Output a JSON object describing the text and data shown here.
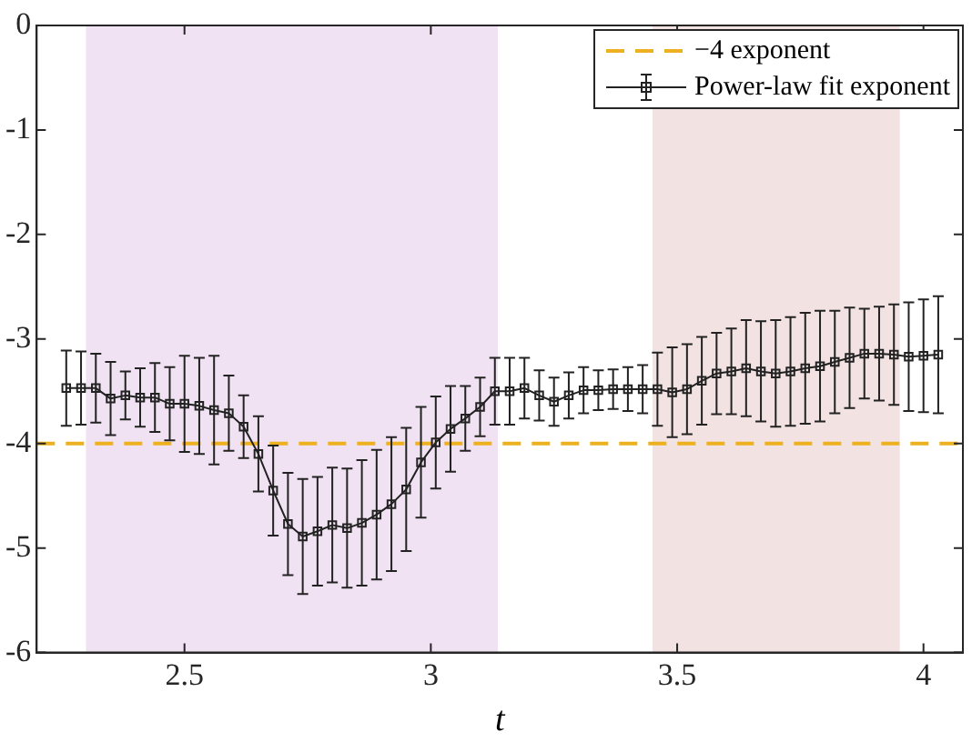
{
  "chart_data": {
    "type": "line",
    "xlabel": "t",
    "xlim": [
      2.2,
      4.08
    ],
    "xticks": [
      2.5,
      3,
      3.5,
      4
    ],
    "ylim": [
      -6,
      0
    ],
    "yticks": [
      0,
      -1,
      -2,
      -3,
      -4,
      -5,
      -6
    ],
    "grid": false,
    "legend": "top right",
    "marker": "square",
    "line_style": "solid",
    "ref_lines": [
      {
        "axis": "y",
        "value": -4,
        "label": "−4 exponent",
        "color": "#edb120",
        "line_style": "dashed"
      }
    ],
    "bands": [
      {
        "axis": "x",
        "from": 2.3,
        "to": 3.136,
        "color": "#f0e2f2"
      },
      {
        "axis": "x",
        "from": 3.45,
        "to": 3.952,
        "color": "#f2e2e2"
      }
    ],
    "series": [
      {
        "name": "Power-law fit exponent",
        "color": "#222222",
        "x": [
          2.26,
          2.29,
          2.32,
          2.35,
          2.38,
          2.41,
          2.44,
          2.47,
          2.5,
          2.53,
          2.56,
          2.59,
          2.62,
          2.65,
          2.68,
          2.71,
          2.74,
          2.77,
          2.8,
          2.83,
          2.86,
          2.89,
          2.92,
          2.95,
          2.98,
          3.01,
          3.04,
          3.07,
          3.1,
          3.13,
          3.16,
          3.19,
          3.22,
          3.25,
          3.28,
          3.31,
          3.34,
          3.37,
          3.4,
          3.43,
          3.46,
          3.49,
          3.52,
          3.55,
          3.58,
          3.61,
          3.64,
          3.67,
          3.7,
          3.73,
          3.76,
          3.79,
          3.82,
          3.85,
          3.88,
          3.91,
          3.94,
          3.97,
          4.0,
          4.03
        ],
        "values": [
          -3.47,
          -3.47,
          -3.47,
          -3.57,
          -3.54,
          -3.56,
          -3.56,
          -3.62,
          -3.62,
          -3.64,
          -3.68,
          -3.71,
          -3.84,
          -4.1,
          -4.45,
          -4.77,
          -4.89,
          -4.84,
          -4.78,
          -4.81,
          -4.76,
          -4.68,
          -4.58,
          -4.44,
          -4.18,
          -3.99,
          -3.86,
          -3.76,
          -3.65,
          -3.5,
          -3.5,
          -3.47,
          -3.54,
          -3.6,
          -3.54,
          -3.49,
          -3.49,
          -3.48,
          -3.48,
          -3.48,
          -3.48,
          -3.51,
          -3.48,
          -3.4,
          -3.33,
          -3.31,
          -3.28,
          -3.31,
          -3.33,
          -3.31,
          -3.28,
          -3.26,
          -3.22,
          -3.18,
          -3.14,
          -3.14,
          -3.15,
          -3.17,
          -3.16,
          -3.15
        ],
        "errors": [
          0.36,
          0.35,
          0.33,
          0.35,
          0.23,
          0.28,
          0.33,
          0.35,
          0.46,
          0.46,
          0.52,
          0.36,
          0.3,
          0.36,
          0.43,
          0.49,
          0.55,
          0.52,
          0.55,
          0.57,
          0.6,
          0.62,
          0.64,
          0.59,
          0.53,
          0.44,
          0.41,
          0.31,
          0.28,
          0.32,
          0.32,
          0.29,
          0.24,
          0.23,
          0.22,
          0.22,
          0.19,
          0.19,
          0.21,
          0.23,
          0.35,
          0.43,
          0.43,
          0.42,
          0.39,
          0.41,
          0.46,
          0.48,
          0.51,
          0.52,
          0.53,
          0.53,
          0.49,
          0.48,
          0.43,
          0.45,
          0.48,
          0.52,
          0.54,
          0.56
        ]
      }
    ]
  }
}
